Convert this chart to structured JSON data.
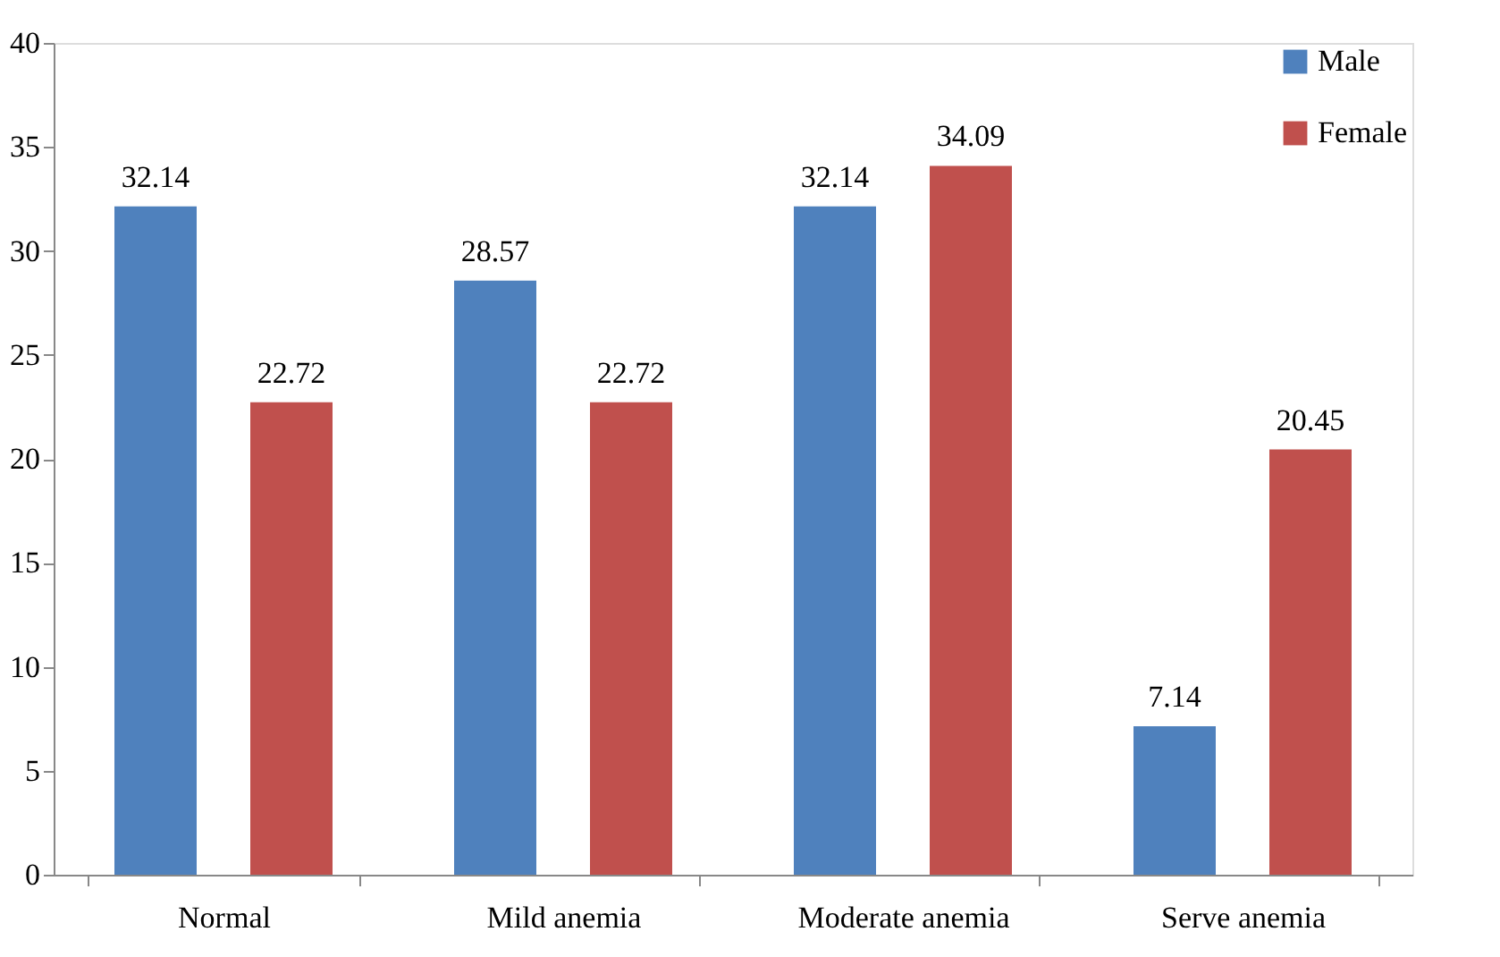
{
  "chart_data": {
    "type": "bar",
    "categories": [
      "Normal",
      "Mild anemia",
      "Moderate anemia",
      "Serve anemia"
    ],
    "series": [
      {
        "name": "Male",
        "color": "#4f81bd",
        "values": [
          32.14,
          28.57,
          32.14,
          7.14
        ]
      },
      {
        "name": "Female",
        "color": "#c0504d",
        "values": [
          22.72,
          22.72,
          34.09,
          20.45
        ]
      }
    ],
    "ylim": [
      0,
      40
    ],
    "yticks": [
      0,
      5,
      10,
      15,
      20,
      25,
      30,
      35,
      40
    ],
    "data_labels": true,
    "legend": "top right",
    "grid": false
  }
}
